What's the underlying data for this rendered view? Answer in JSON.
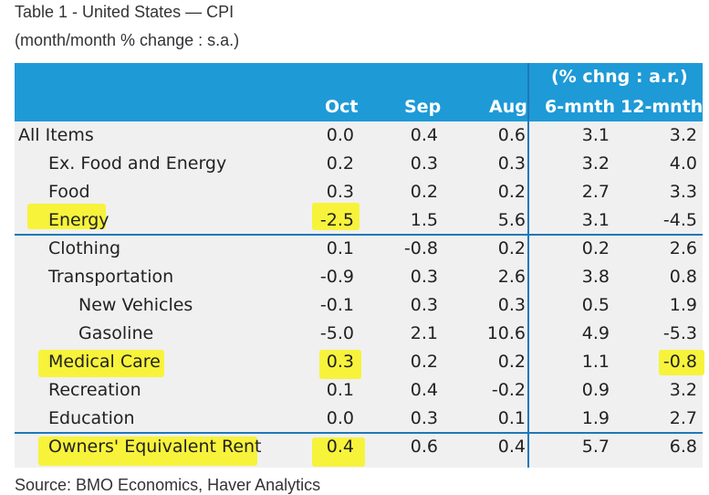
{
  "caption": {
    "title": "Table 1 - United States — CPI",
    "subtitle": "(month/month % change : s.a.)"
  },
  "header": {
    "group_label": "(% chng : a.r.)",
    "columns": [
      "Oct",
      "Sep",
      "Aug",
      "6-mnth",
      "12-mnth"
    ]
  },
  "rows": [
    {
      "label": "All Items",
      "indent": 0,
      "oct": "0.0",
      "sep": "0.4",
      "aug": "0.6",
      "m6": "3.1",
      "m12": "3.2"
    },
    {
      "label": "Ex. Food and Energy",
      "indent": 1,
      "oct": "0.2",
      "sep": "0.3",
      "aug": "0.3",
      "m6": "3.2",
      "m12": "4.0"
    },
    {
      "label": "Food",
      "indent": 1,
      "oct": "0.3",
      "sep": "0.2",
      "aug": "0.2",
      "m6": "2.7",
      "m12": "3.3"
    },
    {
      "label": "Energy",
      "indent": 1,
      "oct": "-2.5",
      "sep": "1.5",
      "aug": "5.6",
      "m6": "3.1",
      "m12": "-4.5"
    },
    {
      "label": "Clothing",
      "indent": 1,
      "oct": "0.1",
      "sep": "-0.8",
      "aug": "0.2",
      "m6": "0.2",
      "m12": "2.6"
    },
    {
      "label": "Transportation",
      "indent": 1,
      "oct": "-0.9",
      "sep": "0.3",
      "aug": "2.6",
      "m6": "3.8",
      "m12": "0.8"
    },
    {
      "label": "New Vehicles",
      "indent": 2,
      "oct": "-0.1",
      "sep": "0.3",
      "aug": "0.3",
      "m6": "0.5",
      "m12": "1.9"
    },
    {
      "label": "Gasoline",
      "indent": 2,
      "oct": "-5.0",
      "sep": "2.1",
      "aug": "10.6",
      "m6": "4.9",
      "m12": "-5.3"
    },
    {
      "label": "Medical Care",
      "indent": 1,
      "oct": "0.3",
      "sep": "0.2",
      "aug": "0.2",
      "m6": "1.1",
      "m12": "-0.8"
    },
    {
      "label": "Recreation",
      "indent": 1,
      "oct": "0.1",
      "sep": "0.4",
      "aug": "-0.2",
      "m6": "0.9",
      "m12": "3.2"
    },
    {
      "label": "Education",
      "indent": 1,
      "oct": "0.0",
      "sep": "0.3",
      "aug": "0.1",
      "m6": "1.9",
      "m12": "2.7"
    },
    {
      "label": "Owners' Equivalent Rent",
      "indent": 1,
      "oct": "0.4",
      "sep": "0.6",
      "aug": "0.4",
      "m6": "5.7",
      "m12": "6.8"
    }
  ],
  "source": "Source: BMO Economics, Haver Analytics",
  "colors": {
    "header_bg": "#1e9ad6",
    "rule": "#1e78b9",
    "highlight": "#f7f230",
    "table_bg": "#f0f0f0"
  }
}
